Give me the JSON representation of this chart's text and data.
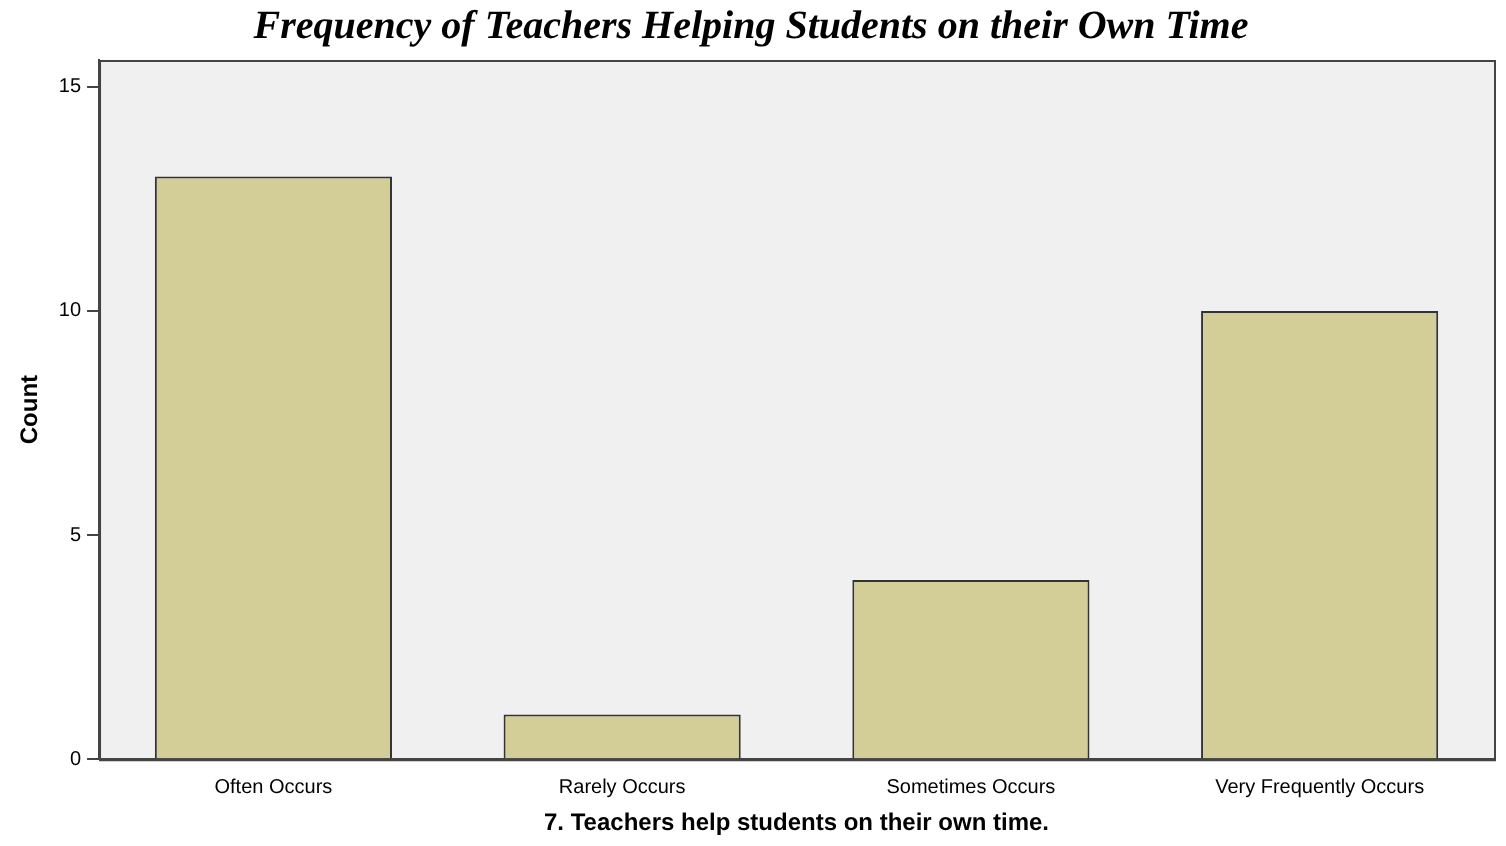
{
  "chart_data": {
    "type": "bar",
    "title": "Frequency of Teachers Helping Students on their Own Time",
    "xlabel": "7. Teachers help students on their own time.",
    "ylabel": "Count",
    "categories": [
      "Often Occurs",
      "Rarely Occurs",
      "Sometimes Occurs",
      "Very Frequently Occurs"
    ],
    "values": [
      13,
      1,
      4,
      10
    ],
    "color": "#d3ce97",
    "ylim": [
      0,
      15.6
    ],
    "yticks": [
      0,
      5,
      10,
      15
    ],
    "grid": false,
    "legend": false
  }
}
